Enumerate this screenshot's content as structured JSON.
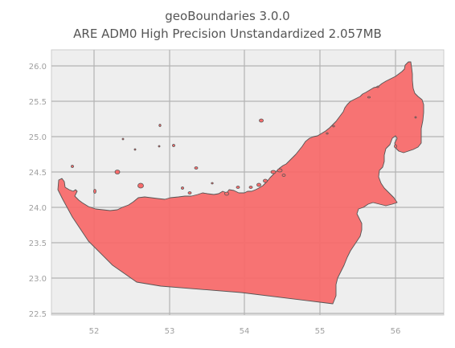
{
  "map": {
    "title_line1": "geoBoundaries 3.0.0",
    "title_line2": "ARE ADM0 High Precision Unstandardized 2.057MB",
    "x_ticks": [
      "52",
      "53",
      "54",
      "55",
      "56"
    ],
    "y_ticks": [
      "26.0",
      "25.5",
      "25.0",
      "24.5",
      "24.0",
      "23.5",
      "23.0",
      "22.5"
    ],
    "fill_color": "#f76b6b",
    "edge_color": "#555555",
    "background_color": "#eeeeee",
    "grid_color": "#b3b3b3"
  }
}
